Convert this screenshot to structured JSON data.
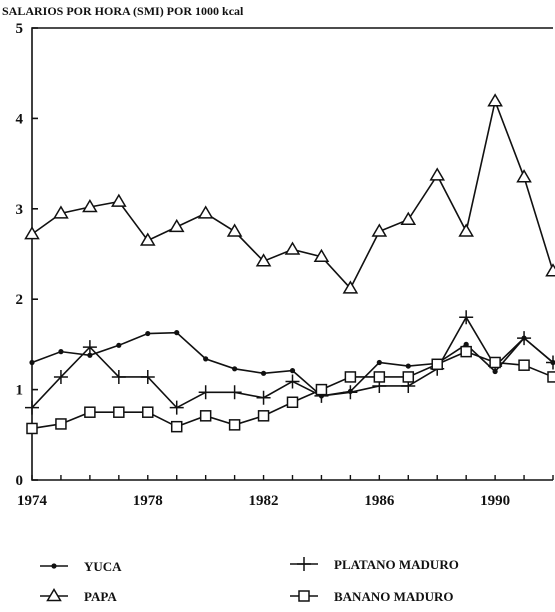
{
  "chart_data": {
    "type": "line",
    "title": "SALARIOS POR HORA (SMI) POR 1000 kcal",
    "xlabel": "",
    "ylabel": "",
    "x": [
      1974,
      1975,
      1976,
      1977,
      1978,
      1979,
      1980,
      1981,
      1982,
      1983,
      1984,
      1985,
      1986,
      1987,
      1988,
      1989,
      1990,
      1991,
      1992
    ],
    "xlim": [
      1974,
      1992
    ],
    "ylim": [
      0,
      5
    ],
    "xticks": [
      1974,
      1978,
      1982,
      1986,
      1990
    ],
    "yticks": [
      0,
      1,
      2,
      3,
      4,
      5
    ],
    "xtick_labels": [
      "1974",
      "1978",
      "1982",
      "1986",
      "1990"
    ],
    "ytick_labels": [
      "0",
      "1",
      "2",
      "3",
      "4",
      "5"
    ],
    "grid": false,
    "legend_position": "bottom",
    "series": [
      {
        "name": "YUCA",
        "marker": "dot",
        "values": [
          1.3,
          1.42,
          1.38,
          1.49,
          1.62,
          1.63,
          1.34,
          1.23,
          1.18,
          1.21,
          0.93,
          0.98,
          1.3,
          1.26,
          1.29,
          1.5,
          1.2,
          1.57,
          1.3
        ]
      },
      {
        "name": "PAPA",
        "marker": "triangle",
        "values": [
          2.72,
          2.95,
          3.02,
          3.08,
          2.65,
          2.8,
          2.95,
          2.75,
          2.42,
          2.55,
          2.47,
          2.12,
          2.75,
          2.88,
          3.37,
          2.75,
          4.19,
          3.35,
          2.31
        ]
      },
      {
        "name": "PLATANO MADURO",
        "marker": "plus",
        "values": [
          0.8,
          1.14,
          1.47,
          1.14,
          1.14,
          0.8,
          0.97,
          0.97,
          0.91,
          1.09,
          0.93,
          0.97,
          1.04,
          1.04,
          1.23,
          1.8,
          1.26,
          1.57,
          1.3
        ]
      },
      {
        "name": "BANANO MADURO",
        "marker": "square",
        "values": [
          0.57,
          0.62,
          0.75,
          0.75,
          0.75,
          0.59,
          0.71,
          0.61,
          0.71,
          0.86,
          1.0,
          1.14,
          1.14,
          1.14,
          1.28,
          1.42,
          1.3,
          1.27,
          1.14
        ]
      }
    ]
  }
}
